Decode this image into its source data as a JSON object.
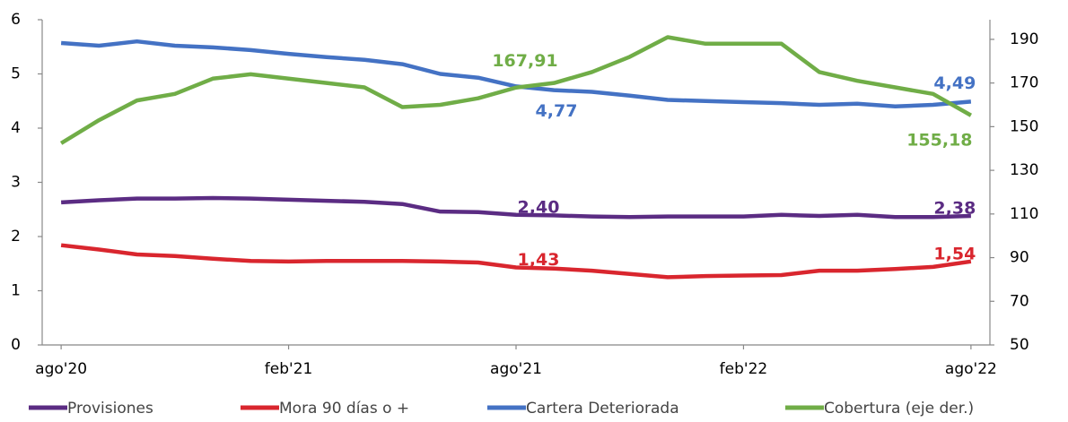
{
  "chart_data": {
    "type": "line",
    "categories": [
      "ago'20",
      null,
      null,
      null,
      null,
      null,
      "feb'21",
      null,
      null,
      null,
      null,
      null,
      "ago'21",
      null,
      null,
      null,
      null,
      null,
      "feb'22",
      null,
      null,
      null,
      null,
      null,
      "ago'22"
    ],
    "ylim": [
      0,
      6
    ],
    "yticks": [
      0,
      1,
      2,
      3,
      4,
      5,
      6
    ],
    "y2lim": [
      50,
      199
    ],
    "y2ticks": [
      50,
      70,
      90,
      110,
      130,
      150,
      170,
      190
    ],
    "grid": false,
    "legend": "bottom",
    "series": [
      {
        "name": "Provisiones",
        "color": "#5b2c83",
        "values": [
          2.63,
          2.67,
          2.7,
          2.7,
          2.71,
          2.7,
          2.68,
          2.66,
          2.64,
          2.6,
          2.46,
          2.45,
          2.4,
          2.39,
          2.37,
          2.36,
          2.37,
          2.37,
          2.37,
          2.4,
          2.38,
          2.4,
          2.36,
          2.36,
          2.38
        ],
        "value_labels": [
          null,
          null,
          null,
          null,
          null,
          null,
          null,
          null,
          null,
          null,
          null,
          null,
          "2,40",
          null,
          null,
          null,
          null,
          null,
          null,
          null,
          null,
          null,
          null,
          null,
          "2,38"
        ]
      },
      {
        "name": "Mora 90 días o +",
        "color": "#d9262e",
        "values": [
          1.84,
          1.76,
          1.67,
          1.64,
          1.59,
          1.55,
          1.54,
          1.55,
          1.55,
          1.55,
          1.54,
          1.52,
          1.43,
          1.41,
          1.37,
          1.31,
          1.25,
          1.27,
          1.28,
          1.29,
          1.37,
          1.37,
          1.4,
          1.44,
          1.54
        ],
        "value_labels": [
          null,
          null,
          null,
          null,
          null,
          null,
          null,
          null,
          null,
          null,
          null,
          null,
          "1,43",
          null,
          null,
          null,
          null,
          null,
          null,
          null,
          null,
          null,
          null,
          null,
          "1,54"
        ]
      },
      {
        "name": "Cartera Deteriorada",
        "color": "#4472c4",
        "values": [
          5.57,
          5.52,
          5.6,
          5.52,
          5.49,
          5.44,
          5.37,
          5.31,
          5.26,
          5.18,
          5.0,
          4.93,
          4.77,
          4.7,
          4.67,
          4.6,
          4.52,
          4.5,
          4.48,
          4.46,
          4.43,
          4.45,
          4.4,
          4.43,
          4.49
        ],
        "value_labels": [
          null,
          null,
          null,
          null,
          null,
          null,
          null,
          null,
          null,
          null,
          null,
          null,
          "4,77",
          null,
          null,
          null,
          null,
          null,
          null,
          null,
          null,
          null,
          null,
          null,
          "4,49"
        ]
      },
      {
        "name": "Cobertura (eje der.)",
        "color": "#70ad47",
        "axis": "y2",
        "values": [
          142.4,
          153,
          162,
          165,
          172,
          174,
          172,
          170,
          168,
          159,
          160,
          163,
          167.91,
          170,
          175,
          182,
          191,
          188,
          188,
          188,
          175,
          171,
          168,
          165,
          155.18
        ],
        "value_labels": [
          null,
          null,
          null,
          null,
          null,
          null,
          null,
          null,
          null,
          null,
          null,
          null,
          "167,91",
          null,
          null,
          null,
          null,
          null,
          null,
          null,
          null,
          null,
          null,
          null,
          "155,18"
        ]
      }
    ]
  }
}
